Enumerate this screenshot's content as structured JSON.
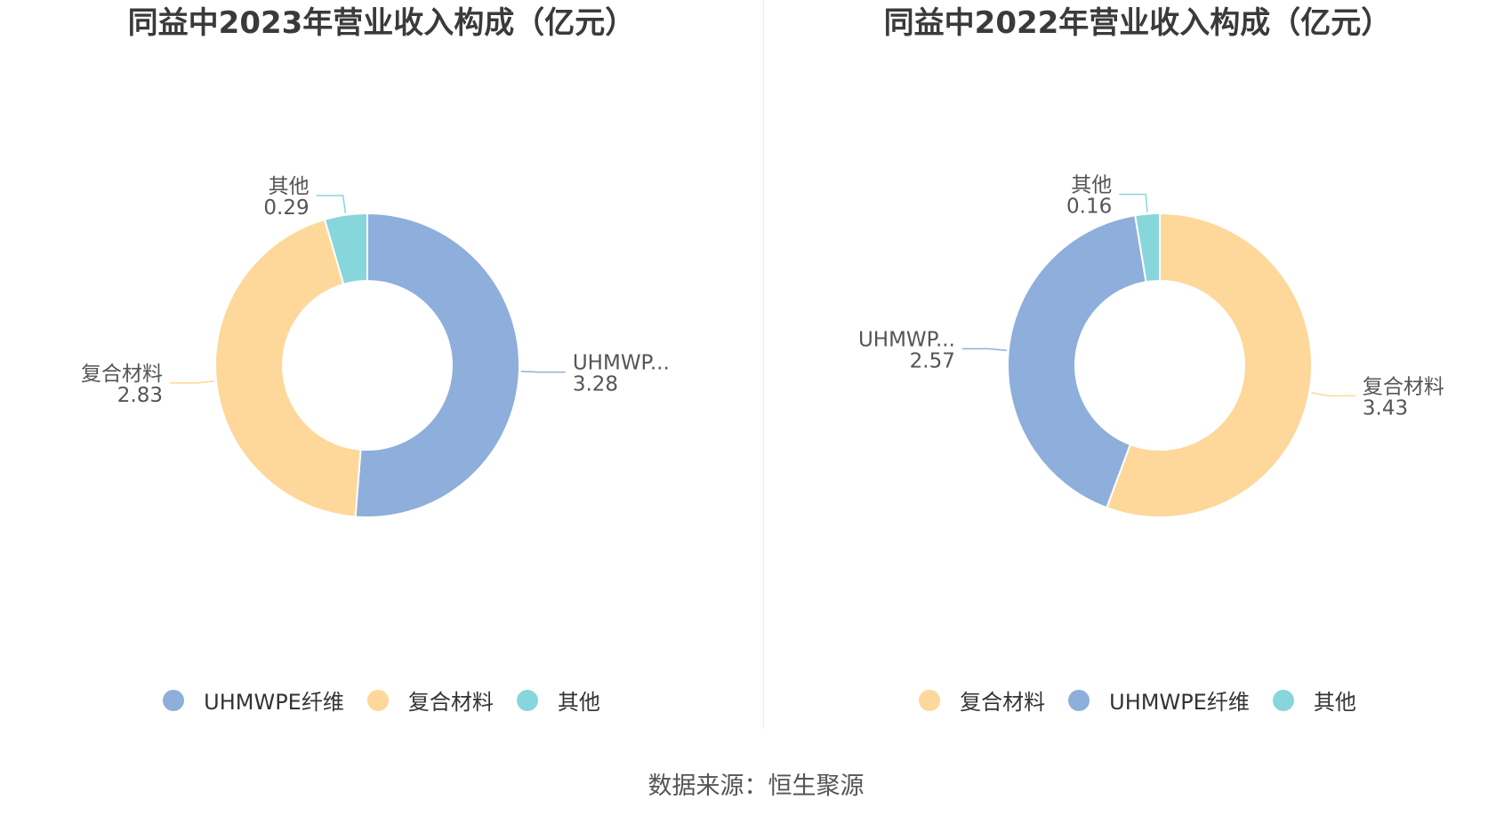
{
  "colors": {
    "uhmwpe": "#8eaedb",
    "composite": "#fdd89a",
    "other": "#87d6dc"
  },
  "charts": [
    {
      "title": "同益中2023年营业收入构成（亿元）",
      "legend": [
        {
          "name": "UHMWPE纤维",
          "color_key": "uhmwpe"
        },
        {
          "name": "复合材料",
          "color_key": "composite"
        },
        {
          "name": "其他",
          "color_key": "other"
        }
      ]
    },
    {
      "title": "同益中2022年营业收入构成（亿元）",
      "legend": [
        {
          "name": "复合材料",
          "color_key": "composite"
        },
        {
          "name": "UHMWPE纤维",
          "color_key": "uhmwpe"
        },
        {
          "name": "其他",
          "color_key": "other"
        }
      ]
    }
  ],
  "chart_data": [
    {
      "type": "pie",
      "donut": true,
      "title": "同益中2023年营业收入构成（亿元）",
      "slices": [
        {
          "name": "UHMWPE纤维",
          "label": "UHMWP...",
          "value": 3.28,
          "value_text": "3.28",
          "color": "#8eaedb"
        },
        {
          "name": "复合材料",
          "label": "复合材料",
          "value": 2.83,
          "value_text": "2.83",
          "color": "#fdd89a"
        },
        {
          "name": "其他",
          "label": "其他",
          "value": 0.29,
          "value_text": "0.29",
          "color": "#87d6dc"
        }
      ]
    },
    {
      "type": "pie",
      "donut": true,
      "title": "同益中2022年营业收入构成（亿元）",
      "slices": [
        {
          "name": "复合材料",
          "label": "复合材料",
          "value": 3.43,
          "value_text": "3.43",
          "color": "#fdd89a"
        },
        {
          "name": "UHMWPE纤维",
          "label": "UHMWP...",
          "value": 2.57,
          "value_text": "2.57",
          "color": "#8eaedb"
        },
        {
          "name": "其他",
          "label": "其他",
          "value": 0.16,
          "value_text": "0.16",
          "color": "#87d6dc"
        }
      ]
    }
  ],
  "source": "数据来源：恒生聚源"
}
